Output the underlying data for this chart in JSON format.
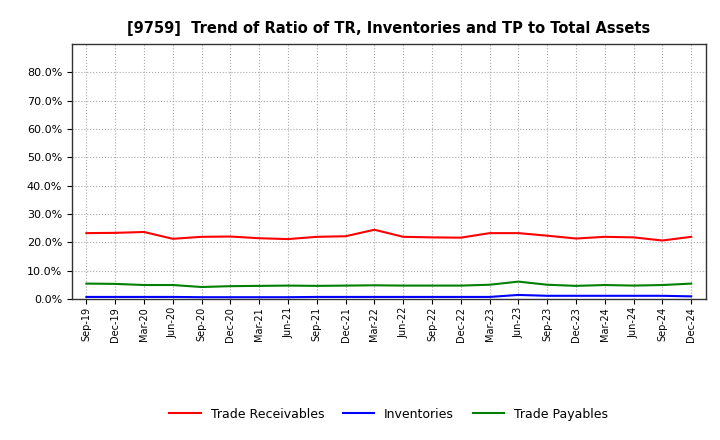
{
  "title": "[9759]  Trend of Ratio of TR, Inventories and TP to Total Assets",
  "x_labels": [
    "Sep-19",
    "Dec-19",
    "Mar-20",
    "Jun-20",
    "Sep-20",
    "Dec-20",
    "Mar-21",
    "Jun-21",
    "Sep-21",
    "Dec-21",
    "Mar-22",
    "Jun-22",
    "Sep-22",
    "Dec-22",
    "Mar-23",
    "Jun-23",
    "Sep-23",
    "Dec-23",
    "Mar-24",
    "Jun-24",
    "Sep-24",
    "Dec-24"
  ],
  "trade_receivables": [
    0.233,
    0.234,
    0.237,
    0.213,
    0.22,
    0.221,
    0.215,
    0.212,
    0.22,
    0.222,
    0.245,
    0.22,
    0.218,
    0.217,
    0.233,
    0.233,
    0.224,
    0.214,
    0.22,
    0.218,
    0.207,
    0.22
  ],
  "inventories": [
    0.008,
    0.008,
    0.008,
    0.008,
    0.007,
    0.007,
    0.007,
    0.007,
    0.008,
    0.008,
    0.008,
    0.008,
    0.008,
    0.008,
    0.008,
    0.015,
    0.012,
    0.012,
    0.012,
    0.012,
    0.012,
    0.01
  ],
  "trade_payables": [
    0.055,
    0.054,
    0.05,
    0.05,
    0.043,
    0.046,
    0.047,
    0.048,
    0.047,
    0.048,
    0.049,
    0.048,
    0.048,
    0.048,
    0.051,
    0.062,
    0.051,
    0.047,
    0.05,
    0.048,
    0.05,
    0.055
  ],
  "tr_color": "#FF0000",
  "inv_color": "#0000FF",
  "tp_color": "#008000",
  "ylim": [
    0.0,
    0.9
  ],
  "yticks": [
    0.0,
    0.1,
    0.2,
    0.3,
    0.4,
    0.5,
    0.6,
    0.7,
    0.8
  ],
  "legend_labels": [
    "Trade Receivables",
    "Inventories",
    "Trade Payables"
  ],
  "background_color": "#FFFFFF",
  "grid_color": "#AAAAAA"
}
